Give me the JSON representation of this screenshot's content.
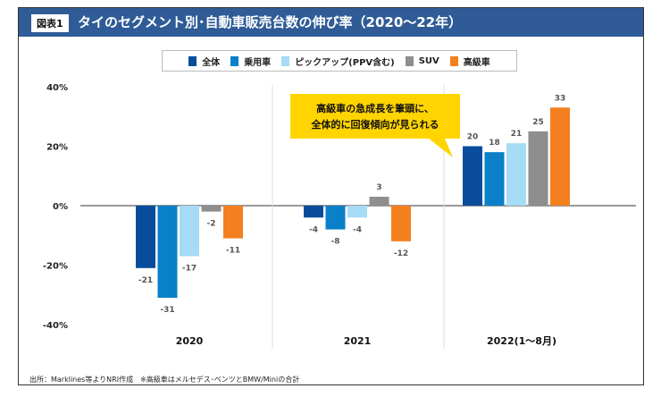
{
  "figure_label": "図表1",
  "title": "タイのセグメント別･自動車販売台数の伸び率（2020～22年）",
  "source": "出所：Marklines等よりNRI作成　※高級車はメルセデス･ベンツとBMW/Miniの合計",
  "callout": [
    "高級車の急成長を筆頭に、",
    "全体的に回復傾向が見られる"
  ],
  "chart_data": {
    "type": "bar",
    "categories": [
      "2020",
      "2021",
      "2022(1～8月)"
    ],
    "series": [
      {
        "name": "全体",
        "color": "#0a4c9c",
        "values": [
          -21,
          -4,
          20
        ]
      },
      {
        "name": "乗用車",
        "color": "#0a80c8",
        "values": [
          -31,
          -8,
          18
        ]
      },
      {
        "name": "ピックアップ(PPV含む)",
        "color": "#a6dbf6",
        "values": [
          -17,
          -4,
          21
        ]
      },
      {
        "name": "SUV",
        "color": "#8e8e8e",
        "values": [
          -2,
          3,
          25
        ]
      },
      {
        "name": "高級車",
        "color": "#f47f1f",
        "values": [
          -11,
          -12,
          33
        ]
      }
    ],
    "yticks": [
      "40%",
      "20%",
      "0%",
      "-20%",
      "-40%"
    ],
    "ytick_values": [
      40,
      20,
      0,
      -20,
      -40
    ],
    "ylim": [
      -40,
      40
    ],
    "legend": "top-center",
    "grid": false
  }
}
